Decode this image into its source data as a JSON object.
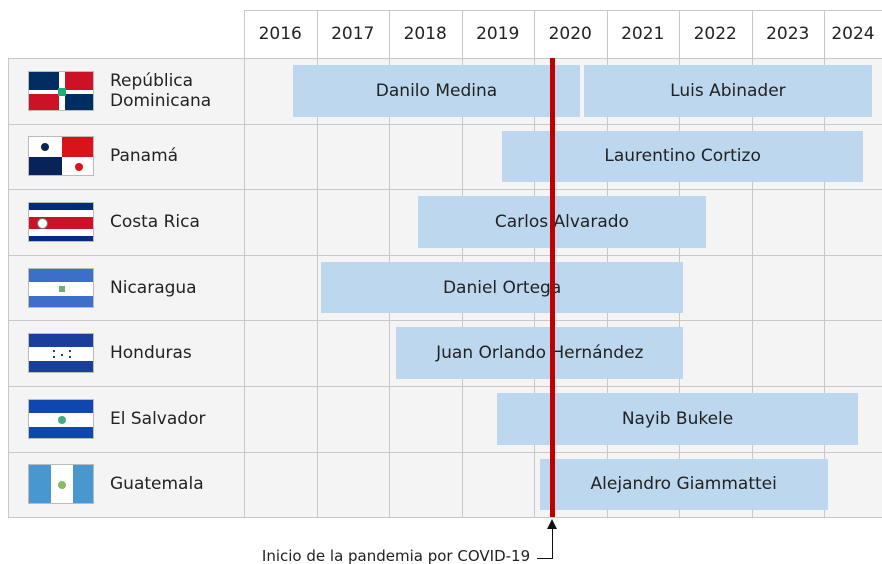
{
  "chart_data": {
    "type": "gantt",
    "xlim": [
      2016,
      2024.8
    ],
    "xticks": [
      2016,
      2017,
      2018,
      2019,
      2020,
      2021,
      2022,
      2023,
      2024
    ],
    "bar_color": "#bdd7ee",
    "rows": [
      {
        "country": "República Dominicana",
        "terms": [
          {
            "name": "Danilo Medina",
            "start": 2016.68,
            "end": 2020.63
          },
          {
            "name": "Luis Abinader",
            "start": 2020.69,
            "end": 2024.66
          }
        ]
      },
      {
        "country": "Panamá",
        "terms": [
          {
            "name": "Laurentino Cortizo",
            "start": 2019.56,
            "end": 2024.54
          }
        ]
      },
      {
        "country": "Costa Rica",
        "terms": [
          {
            "name": "Carlos Alvarado",
            "start": 2018.4,
            "end": 2022.37
          }
        ]
      },
      {
        "country": "Nicaragua",
        "terms": [
          {
            "name": "Daniel Ortega",
            "start": 2017.06,
            "end": 2022.06
          }
        ]
      },
      {
        "country": "Honduras",
        "terms": [
          {
            "name": "Juan Orlando Hernández",
            "start": 2018.1,
            "end": 2022.06
          }
        ]
      },
      {
        "country": "El Salvador",
        "terms": [
          {
            "name": "Nayib Bukele",
            "start": 2019.49,
            "end": 2024.47
          }
        ]
      },
      {
        "country": "Guatemala",
        "terms": [
          {
            "name": "Alejandro Giammattei",
            "start": 2020.08,
            "end": 2024.05
          }
        ]
      }
    ],
    "annotations": [
      {
        "text": "Inicio de la pandemia por COVID-19",
        "x": 2020.25,
        "color": "#c00000"
      }
    ]
  }
}
